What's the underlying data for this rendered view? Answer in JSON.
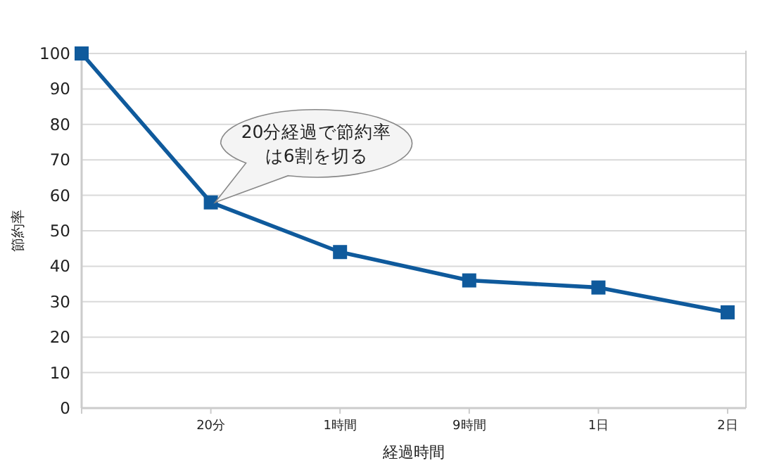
{
  "chart_data": {
    "type": "line",
    "categories": [
      null,
      "20分",
      "1時間",
      "9時間",
      "1日",
      "2日"
    ],
    "series": [
      {
        "color": "#0f5a9c",
        "values": [
          100,
          58,
          44,
          36,
          34,
          27
        ]
      }
    ],
    "xlabel": "経過時間",
    "ylabel": "節約率",
    "ylim": [
      0,
      100
    ],
    "yticks": [
      0,
      10,
      20,
      30,
      40,
      50,
      60,
      70,
      80,
      90,
      100
    ],
    "grid": "y",
    "marker": "square",
    "line_style": "solid",
    "annotations": [
      {
        "text": "20分経過で節約率は6割を切る",
        "x": "20分",
        "y": 58
      }
    ]
  }
}
